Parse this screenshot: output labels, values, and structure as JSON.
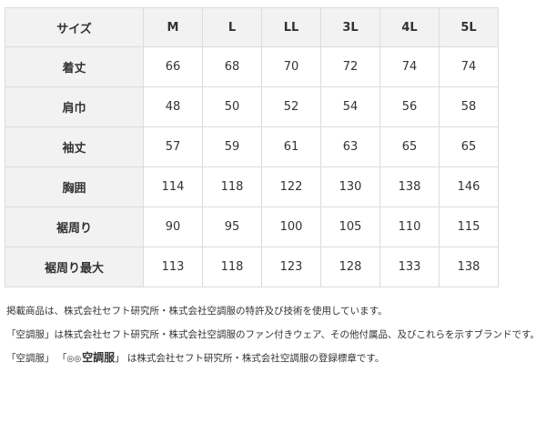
{
  "table": {
    "header": [
      "サイズ",
      "M",
      "L",
      "LL",
      "3L",
      "4L",
      "5L"
    ],
    "rows": [
      [
        "着丈",
        66,
        68,
        70,
        72,
        74,
        74
      ],
      [
        "肩巾",
        48,
        50,
        52,
        54,
        56,
        58
      ],
      [
        "袖丈",
        57,
        59,
        61,
        63,
        65,
        65
      ],
      [
        "胸囲",
        114,
        118,
        122,
        130,
        138,
        146
      ],
      [
        "裾周り",
        90,
        95,
        100,
        105,
        110,
        115
      ],
      [
        "裾周り最大",
        113,
        118,
        123,
        128,
        133,
        138
      ]
    ]
  },
  "notes": {
    "line1": "掲載商品は、株式会社セフト研究所・株式会社空調服の特許及び技術を使用しています。",
    "line2": "「空調服」は株式会社セフト研究所・株式会社空調服のファン付きウェア、その他付属品、及びこれらを示すブランドです。",
    "line3_prefix": "「空調服」 「",
    "line3_logo": "空調服",
    "line3_suffix": "」 は株式会社セフト研究所・株式会社空調服の登録標章です。"
  }
}
